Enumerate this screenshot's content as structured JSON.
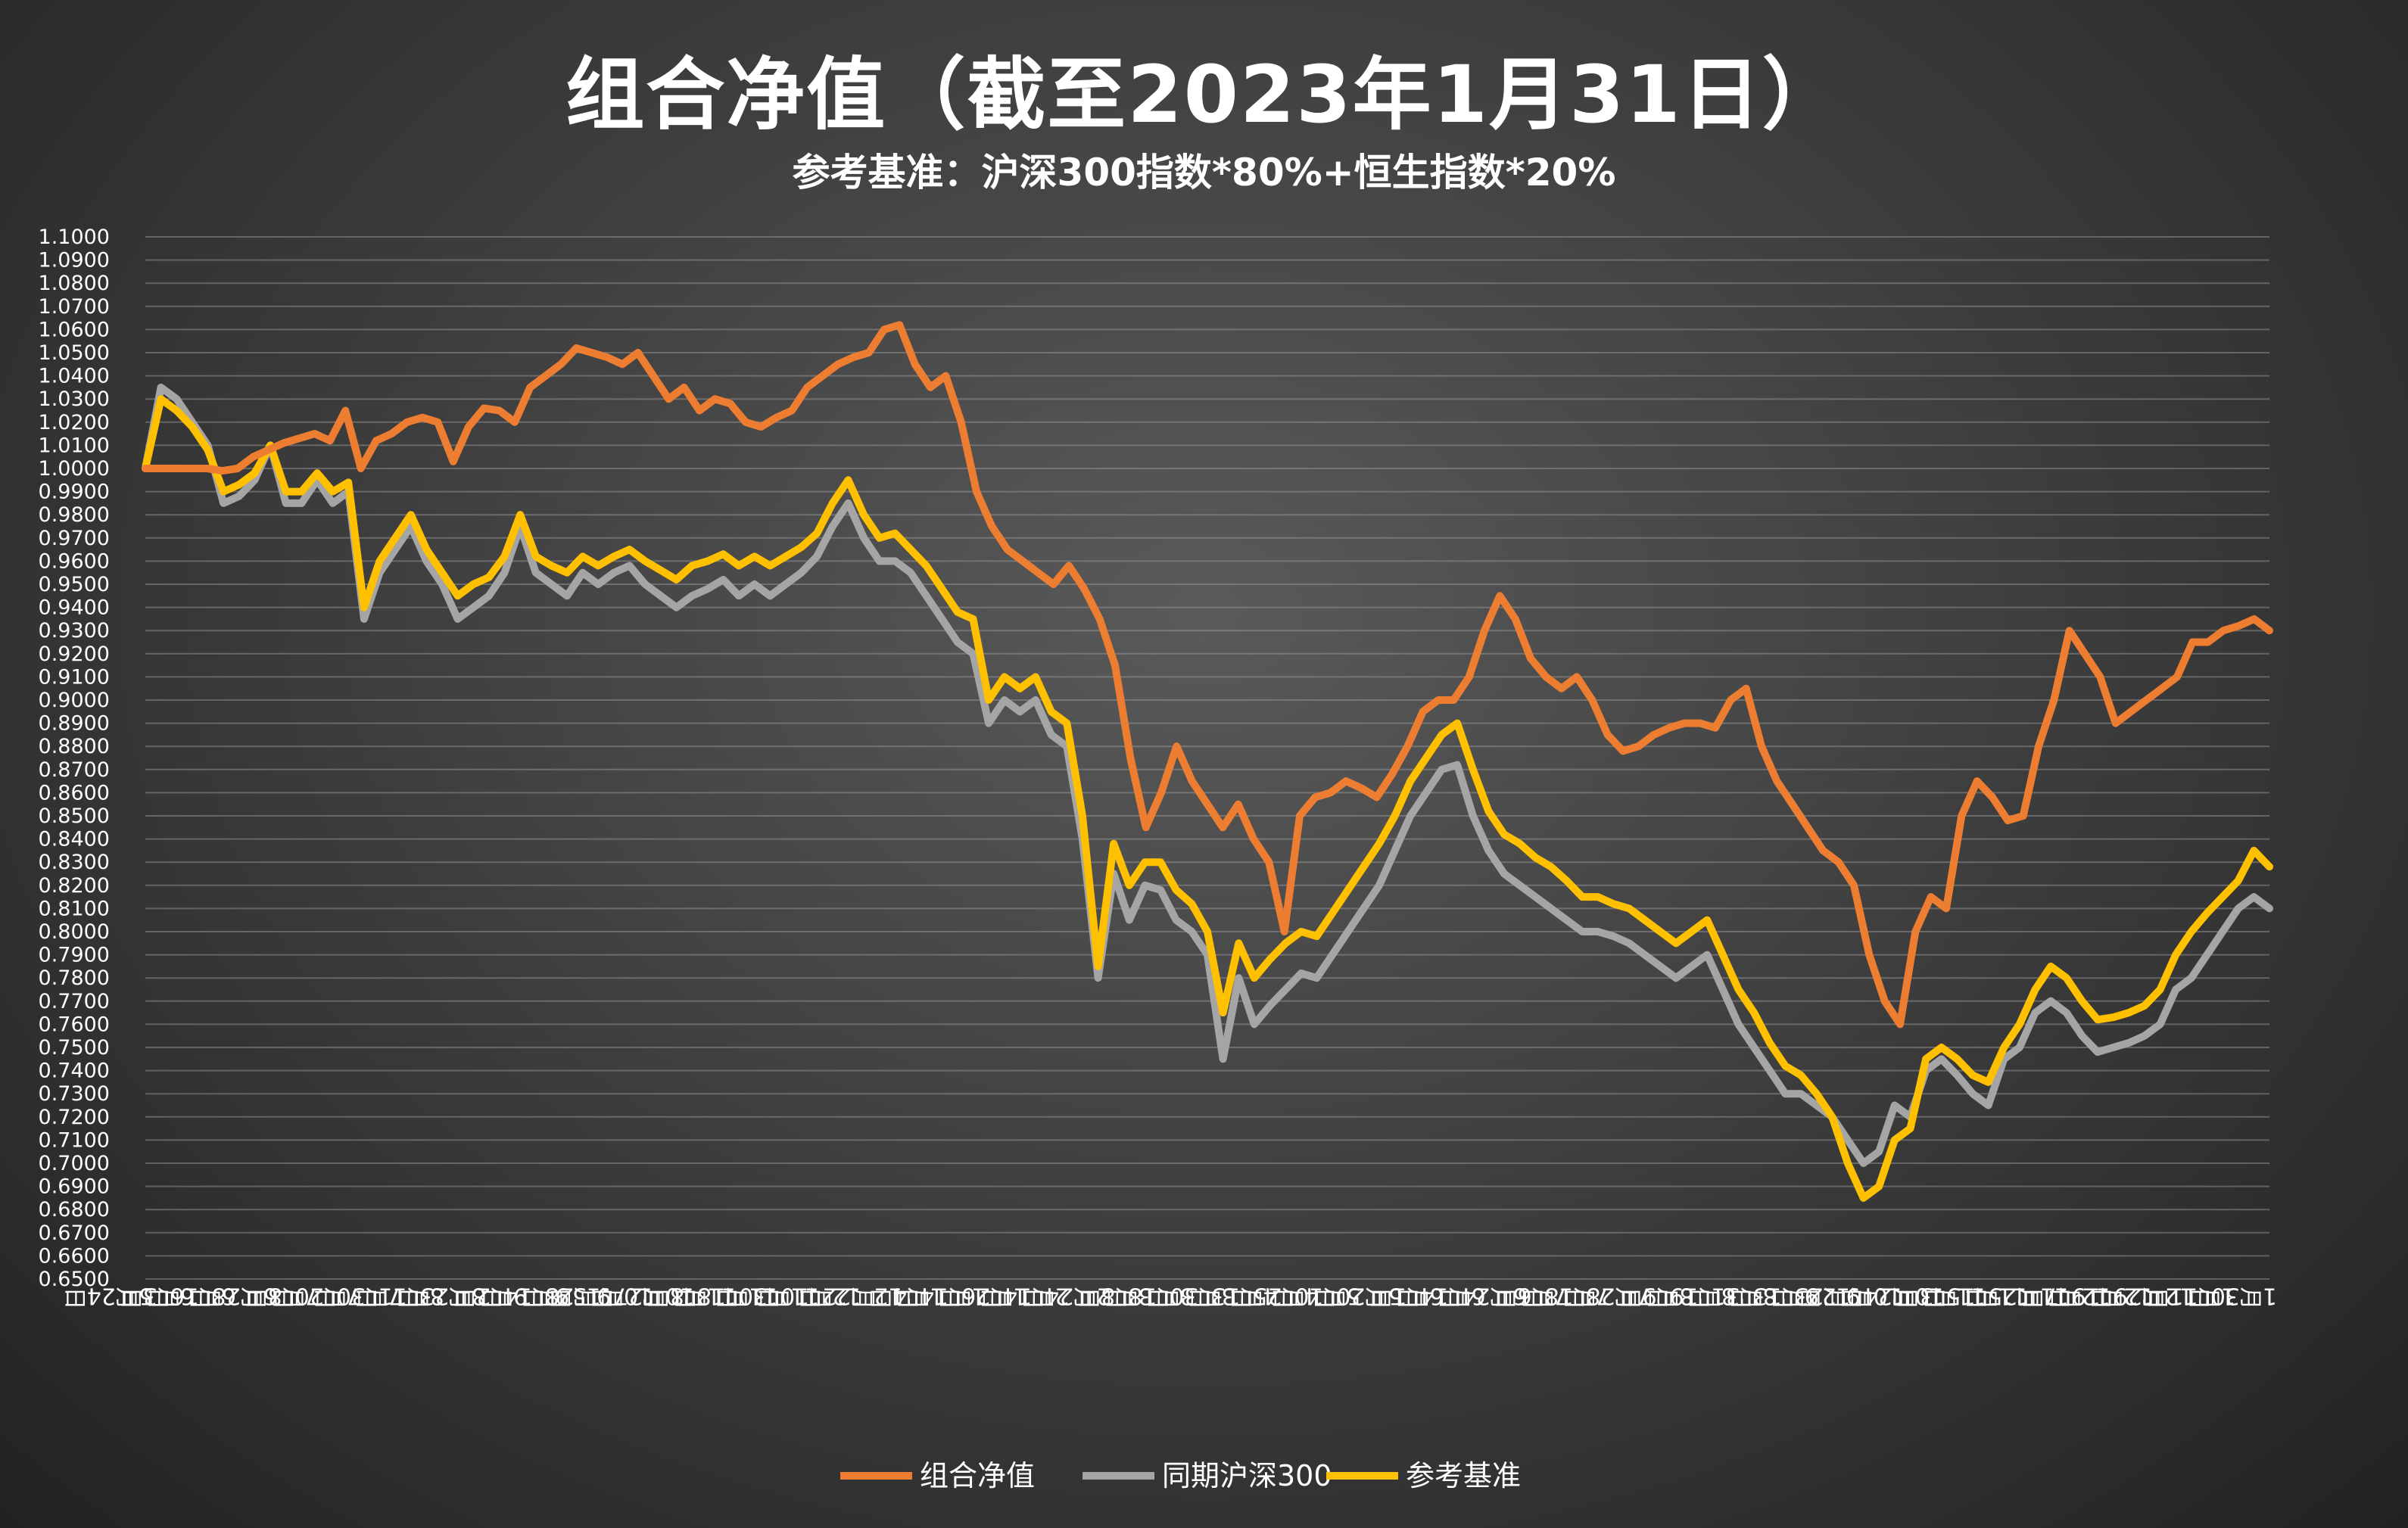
{
  "chart_data": {
    "type": "line",
    "title": "组合净值（截至2023年1月31日）",
    "subtitle": "参考基准：沪深300指数*80%+恒生指数*20%",
    "xlabel": "",
    "ylabel": "",
    "ylim": [
      0.65,
      1.1
    ],
    "ytick_step": 0.01,
    "grid": true,
    "legend_position": "bottom-center",
    "x_tick_labels": [
      "5月24日",
      "6月3日",
      "6月16日",
      "6月28日",
      "7月8日",
      "7月20日",
      "7月30日",
      "8月11日",
      "8月23日",
      "9月2日",
      "9月14日",
      "9月28日",
      "10月15日",
      "10月27日",
      "11月8日",
      "11月18日",
      "11月30日",
      "12月10日",
      "12月22日",
      "1月4日",
      "1月14日",
      "1月26日",
      "2月14日",
      "2月24日",
      "3月8日",
      "3月18日",
      "3月30日",
      "4月13日",
      "4月25日",
      "5月10日",
      "5月20日",
      "6月1日",
      "6月14日",
      "6月24日",
      "7月6日",
      "7月18日",
      "7月28日",
      "8月9日",
      "8月19日",
      "8月31日",
      "9月13日",
      "9月23日",
      "10月12日",
      "10月24日",
      "11月3日",
      "11月15日",
      "11月25日",
      "12月7日",
      "12月19日",
      "12月29日",
      "1月11日",
      "1月30日"
    ],
    "series": [
      {
        "name": "组合净值",
        "color": "#ED7D31",
        "values": [
          1.0,
          1.0,
          1.0,
          1.0,
          1.0,
          0.999,
          1.0,
          1.005,
          1.008,
          1.011,
          1.013,
          1.015,
          1.012,
          1.025,
          1.0,
          1.012,
          1.015,
          1.02,
          1.022,
          1.02,
          1.003,
          1.018,
          1.026,
          1.025,
          1.02,
          1.035,
          1.04,
          1.045,
          1.052,
          1.05,
          1.048,
          1.045,
          1.05,
          1.04,
          1.03,
          1.035,
          1.025,
          1.03,
          1.028,
          1.02,
          1.018,
          1.022,
          1.025,
          1.035,
          1.04,
          1.045,
          1.048,
          1.05,
          1.06,
          1.062,
          1.045,
          1.035,
          1.04,
          1.02,
          0.99,
          0.975,
          0.965,
          0.96,
          0.955,
          0.95,
          0.958,
          0.948,
          0.935,
          0.915,
          0.875,
          0.845,
          0.86,
          0.88,
          0.865,
          0.855,
          0.845,
          0.855,
          0.84,
          0.83,
          0.8,
          0.85,
          0.858,
          0.86,
          0.865,
          0.862,
          0.858,
          0.868,
          0.88,
          0.895,
          0.9,
          0.9,
          0.91,
          0.93,
          0.945,
          0.935,
          0.918,
          0.91,
          0.905,
          0.91,
          0.9,
          0.885,
          0.878,
          0.88,
          0.885,
          0.888,
          0.89,
          0.89,
          0.888,
          0.9,
          0.905,
          0.88,
          0.865,
          0.855,
          0.845,
          0.835,
          0.83,
          0.82,
          0.79,
          0.77,
          0.76,
          0.8,
          0.815,
          0.81,
          0.85,
          0.865,
          0.858,
          0.848,
          0.85,
          0.88,
          0.9,
          0.93,
          0.92,
          0.91,
          0.89,
          0.895,
          0.9,
          0.905,
          0.91,
          0.925,
          0.925,
          0.93,
          0.932,
          0.935,
          0.93
        ]
      },
      {
        "name": "同期沪深300",
        "color": "#A5A5A5",
        "values": [
          1.0,
          1.035,
          1.03,
          1.02,
          1.01,
          0.985,
          0.988,
          0.995,
          1.01,
          0.985,
          0.985,
          0.995,
          0.985,
          0.99,
          0.935,
          0.955,
          0.965,
          0.975,
          0.96,
          0.95,
          0.935,
          0.94,
          0.945,
          0.955,
          0.975,
          0.955,
          0.95,
          0.945,
          0.955,
          0.95,
          0.955,
          0.958,
          0.95,
          0.945,
          0.94,
          0.945,
          0.948,
          0.952,
          0.945,
          0.95,
          0.945,
          0.95,
          0.955,
          0.962,
          0.975,
          0.985,
          0.97,
          0.96,
          0.96,
          0.955,
          0.945,
          0.935,
          0.925,
          0.92,
          0.89,
          0.9,
          0.895,
          0.9,
          0.885,
          0.88,
          0.84,
          0.78,
          0.825,
          0.805,
          0.82,
          0.818,
          0.805,
          0.8,
          0.79,
          0.745,
          0.78,
          0.76,
          0.768,
          0.775,
          0.782,
          0.78,
          0.79,
          0.8,
          0.81,
          0.82,
          0.835,
          0.85,
          0.86,
          0.87,
          0.872,
          0.85,
          0.835,
          0.825,
          0.82,
          0.815,
          0.81,
          0.805,
          0.8,
          0.8,
          0.798,
          0.795,
          0.79,
          0.785,
          0.78,
          0.785,
          0.79,
          0.775,
          0.76,
          0.75,
          0.74,
          0.73,
          0.73,
          0.725,
          0.72,
          0.71,
          0.7,
          0.705,
          0.725,
          0.72,
          0.74,
          0.745,
          0.738,
          0.73,
          0.725,
          0.745,
          0.75,
          0.765,
          0.77,
          0.765,
          0.755,
          0.748,
          0.75,
          0.752,
          0.755,
          0.76,
          0.775,
          0.78,
          0.79,
          0.8,
          0.81,
          0.815,
          0.81
        ]
      },
      {
        "name": "参考基准",
        "color": "#FFC000",
        "values": [
          1.0,
          1.03,
          1.025,
          1.018,
          1.008,
          0.99,
          0.993,
          0.998,
          1.01,
          0.99,
          0.99,
          0.998,
          0.99,
          0.994,
          0.94,
          0.96,
          0.97,
          0.98,
          0.965,
          0.955,
          0.945,
          0.95,
          0.953,
          0.962,
          0.98,
          0.962,
          0.958,
          0.955,
          0.962,
          0.958,
          0.962,
          0.965,
          0.96,
          0.956,
          0.952,
          0.958,
          0.96,
          0.963,
          0.958,
          0.962,
          0.958,
          0.962,
          0.966,
          0.972,
          0.985,
          0.995,
          0.98,
          0.97,
          0.972,
          0.965,
          0.958,
          0.948,
          0.938,
          0.935,
          0.9,
          0.91,
          0.905,
          0.91,
          0.895,
          0.89,
          0.85,
          0.785,
          0.838,
          0.82,
          0.83,
          0.83,
          0.818,
          0.812,
          0.8,
          0.765,
          0.795,
          0.78,
          0.788,
          0.795,
          0.8,
          0.798,
          0.808,
          0.818,
          0.828,
          0.838,
          0.85,
          0.865,
          0.875,
          0.885,
          0.89,
          0.87,
          0.852,
          0.842,
          0.838,
          0.832,
          0.828,
          0.822,
          0.815,
          0.815,
          0.812,
          0.81,
          0.805,
          0.8,
          0.795,
          0.8,
          0.805,
          0.79,
          0.775,
          0.765,
          0.752,
          0.742,
          0.738,
          0.73,
          0.72,
          0.7,
          0.685,
          0.69,
          0.71,
          0.715,
          0.745,
          0.75,
          0.745,
          0.738,
          0.735,
          0.75,
          0.76,
          0.775,
          0.785,
          0.78,
          0.77,
          0.762,
          0.763,
          0.765,
          0.768,
          0.775,
          0.79,
          0.8,
          0.808,
          0.815,
          0.822,
          0.835,
          0.828
        ]
      }
    ]
  }
}
